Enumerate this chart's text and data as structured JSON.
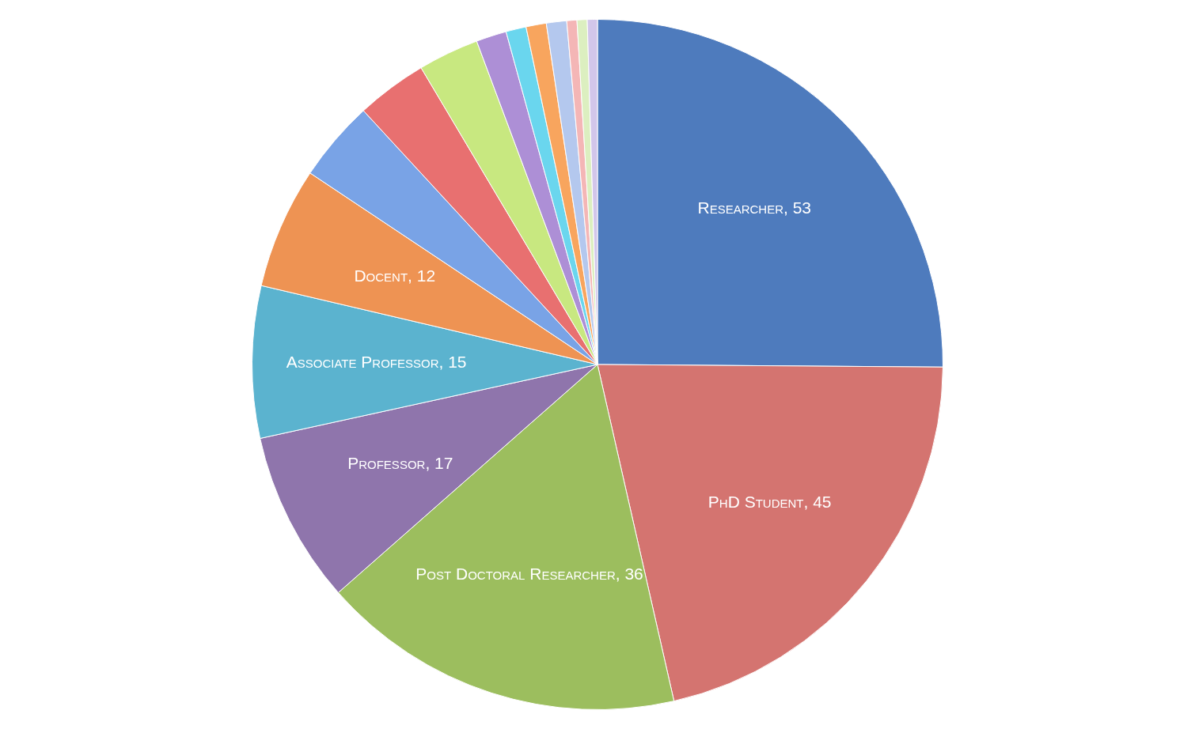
{
  "chart_data": {
    "type": "pie",
    "categories": [
      "Researcher",
      "PhD Student",
      "Post Doctoral Researcher",
      "Professor",
      "Associate Professor",
      "Docent",
      null,
      null,
      null,
      null,
      null,
      null,
      null,
      null,
      null,
      null
    ],
    "values": [
      53,
      45,
      36,
      17,
      15,
      12,
      8,
      7,
      6,
      3,
      2,
      2,
      2,
      1,
      1,
      1
    ],
    "colors": [
      "#4e7bbd",
      "#d47470",
      "#9cbe5e",
      "#8f75ac",
      "#5bb3cf",
      "#ee9353",
      "#79a3e6",
      "#e87070",
      "#c8e880",
      "#ad8fd6",
      "#6ad6ee",
      "#f8a55e",
      "#b4c8ee",
      "#f4b6b6",
      "#dcefc0",
      "#d2c6ea"
    ],
    "value_labels": [
      "53",
      "45",
      "36",
      "17",
      "15",
      "12",
      null,
      null,
      null,
      null,
      null,
      null,
      null,
      null,
      null,
      null
    ]
  }
}
